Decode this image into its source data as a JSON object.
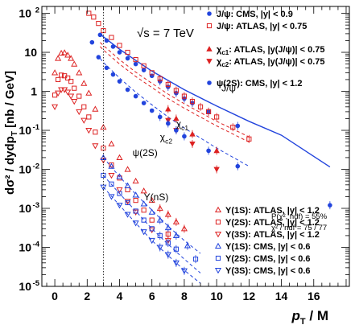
{
  "chart_data": {
    "type": "scatter",
    "title": "",
    "xlabel": {
      "main": "p",
      "sub": "T",
      "rest": " / M"
    },
    "ylabel": {
      "pre": "dσ² / dydp",
      "sub": "T",
      "post": "  [nb / GeV]"
    },
    "energy_label": "√s = 7 TeV",
    "xlim": [
      -0.8,
      18.2
    ],
    "ylim": [
      1e-05,
      150
    ],
    "log_y": true,
    "grid": false,
    "vline_x": 3,
    "x_ticks": [
      0,
      2,
      4,
      6,
      8,
      10,
      12,
      14,
      16
    ],
    "y_ticks": [
      {
        "v": 1e-05,
        "m": "10",
        "e": "-5"
      },
      {
        "v": 0.0001,
        "m": "10",
        "e": "-4"
      },
      {
        "v": 0.001,
        "m": "10",
        "e": "-3"
      },
      {
        "v": 0.01,
        "m": "10",
        "e": "-2"
      },
      {
        "v": 0.1,
        "m": "10",
        "e": "-1"
      },
      {
        "v": 1,
        "m": "1",
        "e": ""
      },
      {
        "v": 10,
        "m": "10",
        "e": ""
      },
      {
        "v": 100,
        "m": "10",
        "e": "2"
      }
    ],
    "fit_info": {
      "line1": "P(χ², ndf) = 55%",
      "line2": "χ² / ndf = 75 / 77"
    },
    "curve_labels": [
      {
        "text": "J/ψ",
        "sub": "",
        "x": 10.3,
        "y": 1.0
      },
      {
        "text": "χ",
        "sub": "c1",
        "x": 7.5,
        "y": 0.12
      },
      {
        "text": "χ",
        "sub": "c2",
        "x": 6.5,
        "y": 0.055
      },
      {
        "text": "ψ(2S)",
        "sub": "",
        "x": 4.8,
        "y": 0.022
      },
      {
        "text": "Υ(nS)",
        "sub": "",
        "x": 5.5,
        "y": 0.0016
      }
    ],
    "legend_top": [
      {
        "label": "J/ψ: CMS, |y| < 0.9",
        "color": "#2244dd",
        "marker": "circle"
      },
      {
        "label": "J/ψ: ATLAS, |y| < 0.75",
        "color": "#dd2222",
        "marker": "square-open"
      }
    ],
    "legend_chi": [
      {
        "pre": "χ",
        "sub": "c1",
        "post": ": ATLAS, |y(J/ψ)| < 0.75",
        "color": "#dd2222",
        "marker": "tri-up"
      },
      {
        "pre": "χ",
        "sub": "c2",
        "post": ": ATLAS, |y(J/ψ)| < 0.75",
        "color": "#dd2222",
        "marker": "tri-down"
      }
    ],
    "legend_psi2s": [
      {
        "label": "ψ(2S): CMS, |y| < 1.2",
        "color": "#2244dd",
        "marker": "circle"
      }
    ],
    "legend_bottom": [
      {
        "label": "Υ(1S): ATLAS, |y| < 1.2",
        "color": "#dd2222",
        "marker": "tri-up-open"
      },
      {
        "label": "Υ(2S): ATLAS, |y| < 1.2",
        "color": "#dd2222",
        "marker": "square-open"
      },
      {
        "label": "Υ(3S): ATLAS, |y| < 1.2",
        "color": "#dd2222",
        "marker": "tri-down-open"
      },
      {
        "label": "Υ(1S): CMS, |y| < 0.6",
        "color": "#2244dd",
        "marker": "tri-up-open"
      },
      {
        "label": "Υ(2S): CMS, |y| < 0.6",
        "color": "#2244dd",
        "marker": "square-open"
      },
      {
        "label": "Υ(3S): CMS, |y| < 0.6",
        "color": "#2244dd",
        "marker": "tri-down-open"
      }
    ],
    "series": [
      {
        "name": "J/ψ: CMS, |y| < 0.9",
        "color": "#2244dd",
        "marker": "circle",
        "x": [
          2.8,
          3.2,
          3.6,
          4.0,
          4.5,
          5.0,
          5.5,
          6.0,
          6.5,
          7.0,
          7.5,
          8.0,
          8.5,
          9.5,
          11.3,
          17.0
        ],
        "y": [
          28,
          20,
          14,
          10,
          7,
          5,
          3.5,
          2.5,
          1.8,
          1.3,
          0.9,
          0.65,
          0.5,
          0.3,
          0.13,
          0.0012
        ]
      },
      {
        "name": "J/ψ: ATLAS, |y| < 0.75",
        "color": "#dd2222",
        "marker": "square-open",
        "x": [
          2.1,
          2.4,
          2.7,
          3.0,
          3.5,
          4.0,
          4.5,
          5.0,
          5.5,
          6.0,
          6.5,
          7.0,
          7.5,
          8.0,
          8.5,
          9.0,
          9.5,
          10.0,
          11.0,
          12.0
        ],
        "y": [
          100,
          80,
          55,
          36,
          24,
          15,
          10,
          6.5,
          4.5,
          3,
          2.1,
          1.5,
          1.05,
          0.75,
          0.55,
          0.4,
          0.3,
          0.22,
          0.12,
          0.06
        ]
      },
      {
        "name": "χc1: ATLAS",
        "color": "#dd2222",
        "marker": "tri-up",
        "x": [
          7.0,
          7.5,
          8.5,
          10.0
        ],
        "y": [
          0.35,
          0.2,
          0.08,
          0.03
        ]
      },
      {
        "name": "χc2: ATLAS",
        "color": "#dd2222",
        "marker": "tri-down",
        "x": [
          7.0,
          7.5,
          8.5,
          10.0
        ],
        "y": [
          0.18,
          0.1,
          0.045,
          0.01
        ]
      },
      {
        "name": "ψ(2S): CMS, |y| < 1.2",
        "color": "#2244dd",
        "marker": "circle",
        "x": [
          2.3,
          2.7,
          3.2,
          3.6,
          4.0,
          4.5,
          5.0,
          5.5,
          6.0,
          6.5,
          7.0,
          7.5,
          8.0,
          9.5,
          11.3
        ],
        "y": [
          18,
          7.5,
          4,
          2.7,
          1.8,
          1.1,
          0.75,
          0.5,
          0.32,
          0.22,
          0.15,
          0.1,
          0.07,
          0.03,
          0.012
        ]
      },
      {
        "name": "Υ(1S): ATLAS, |y| < 1.2",
        "color": "#dd2222",
        "marker": "tri-up-open",
        "x": [
          0.0,
          0.2,
          0.4,
          0.6,
          0.8,
          1.0,
          1.2,
          1.5,
          1.8,
          2.1,
          2.5,
          3.0,
          3.5,
          4.0,
          4.5,
          5.0,
          5.5,
          6.0,
          6.5,
          7.0,
          7.5,
          8.0
        ],
        "y": [
          3,
          7,
          9.5,
          9.8,
          8.5,
          7,
          5,
          3,
          1.6,
          0.9,
          0.35,
          0.12,
          0.045,
          0.02,
          0.01,
          0.005,
          0.0028,
          0.0016,
          0.001,
          0.0007,
          0.00045,
          0.0003
        ]
      },
      {
        "name": "Υ(2S): ATLAS, |y| < 1.2",
        "color": "#dd2222",
        "marker": "square-open",
        "x": [
          0.0,
          0.2,
          0.4,
          0.6,
          0.8,
          1.0,
          1.2,
          1.5,
          1.8,
          2.1,
          2.5,
          3.0,
          3.5,
          4.0,
          4.5,
          5.0,
          5.5,
          6.0,
          7.0
        ],
        "y": [
          0.8,
          2,
          2.6,
          2.5,
          2.2,
          1.8,
          1.2,
          0.75,
          0.4,
          0.22,
          0.09,
          0.035,
          0.013,
          0.006,
          0.003,
          0.0016,
          0.0009,
          0.0005,
          0.00022
        ]
      },
      {
        "name": "Υ(3S): ATLAS, |y| < 1.2",
        "color": "#dd2222",
        "marker": "tri-down-open",
        "x": [
          0.0,
          0.2,
          0.4,
          0.6,
          0.8,
          1.0,
          1.2,
          1.5,
          1.8,
          2.1,
          2.5,
          3.0,
          3.5,
          4.0,
          4.5,
          5.0,
          6.0,
          7.0
        ],
        "y": [
          0.4,
          0.9,
          1.1,
          1.1,
          0.95,
          0.75,
          0.55,
          0.3,
          0.18,
          0.1,
          0.04,
          0.017,
          0.007,
          0.003,
          0.0015,
          0.0008,
          0.00028,
          0.00015
        ]
      },
      {
        "name": "Υ(1S): CMS, |y| < 0.6",
        "color": "#2244dd",
        "marker": "tri-up-open",
        "x": [
          3.0,
          3.5,
          4.0,
          4.5,
          5.0,
          5.5,
          6.0,
          6.5,
          7.0,
          7.5,
          8.2
        ],
        "y": [
          0.02,
          0.012,
          0.0065,
          0.0038,
          0.0022,
          0.0013,
          0.0008,
          0.0005,
          0.00032,
          0.0002,
          0.00011
        ]
      },
      {
        "name": "Υ(2S): CMS, |y| < 0.6",
        "color": "#2244dd",
        "marker": "square-open",
        "x": [
          3.0,
          3.5,
          4.0,
          4.5,
          5.0,
          5.5,
          6.0,
          6.5,
          7.0,
          7.5,
          8.7
        ],
        "y": [
          0.007,
          0.0042,
          0.0024,
          0.0014,
          0.00085,
          0.0005,
          0.0003,
          0.0002,
          0.00013,
          9e-05,
          5e-05
        ]
      },
      {
        "name": "Υ(3S): CMS, |y| < 0.6",
        "color": "#2244dd",
        "marker": "tri-down-open",
        "x": [
          3.0,
          3.5,
          4.0,
          4.5,
          5.0,
          5.5,
          6.0,
          6.5,
          7.0,
          7.5,
          8.0
        ],
        "y": [
          0.0035,
          0.002,
          0.0012,
          0.0007,
          0.00042,
          0.00025,
          0.00015,
          0.0001,
          6.5e-05,
          4e-05,
          2.5e-05
        ]
      }
    ],
    "curves": [
      {
        "name": "J/ψ fit",
        "color": "#2244dd",
        "dash": "",
        "width": 1.4,
        "x": [
          2.8,
          3,
          4,
          5,
          6,
          7,
          8,
          10,
          12,
          14,
          17
        ],
        "y": [
          30,
          25,
          12,
          6.2,
          3.3,
          1.9,
          1.1,
          0.42,
          0.17,
          0.075,
          0.0115
        ]
      },
      {
        "name": "χc1 fit",
        "color": "#dd2222",
        "dash": "4,3",
        "width": 1.0,
        "x": [
          2.8,
          3,
          4,
          5,
          6,
          7,
          8,
          10,
          12
        ],
        "y": [
          18,
          15,
          6.5,
          3.1,
          1.6,
          0.85,
          0.48,
          0.17,
          0.068
        ]
      },
      {
        "name": "χc2 fit",
        "color": "#dd2222",
        "dash": "4,3",
        "width": 1.0,
        "x": [
          2.8,
          3,
          4,
          5,
          6,
          7,
          8,
          10,
          12
        ],
        "y": [
          14,
          11.5,
          5,
          2.4,
          1.25,
          0.65,
          0.37,
          0.13,
          0.05
        ]
      },
      {
        "name": "ψ(2S) fit",
        "color": "#2244dd",
        "dash": "4,3",
        "width": 1.0,
        "x": [
          2.8,
          3,
          4,
          5,
          6,
          7,
          8,
          10,
          12
        ],
        "y": [
          7,
          5.5,
          2.2,
          0.95,
          0.45,
          0.22,
          0.115,
          0.035,
          0.012
        ]
      },
      {
        "name": "Υ(1S) fit",
        "color": "#2244dd",
        "dash": "4,3",
        "width": 1.0,
        "x": [
          3,
          4,
          5,
          6,
          7,
          8,
          9
        ],
        "y": [
          0.02,
          0.0065,
          0.0023,
          0.0009,
          0.00035,
          0.00015,
          7e-05
        ]
      },
      {
        "name": "Υ(2S) fit",
        "color": "#2244dd",
        "dash": "4,3",
        "width": 1.0,
        "x": [
          3,
          4,
          5,
          6,
          7,
          8,
          9
        ],
        "y": [
          0.007,
          0.0024,
          0.00085,
          0.0003,
          0.00012,
          5e-05,
          2.2e-05
        ]
      },
      {
        "name": "Υ(3S) fit",
        "color": "#2244dd",
        "dash": "4,3",
        "width": 1.0,
        "x": [
          3,
          4,
          5,
          6,
          7,
          8,
          9
        ],
        "y": [
          0.0035,
          0.0012,
          0.00042,
          0.00015,
          6.2e-05,
          2.6e-05,
          1.2e-05
        ]
      }
    ]
  }
}
